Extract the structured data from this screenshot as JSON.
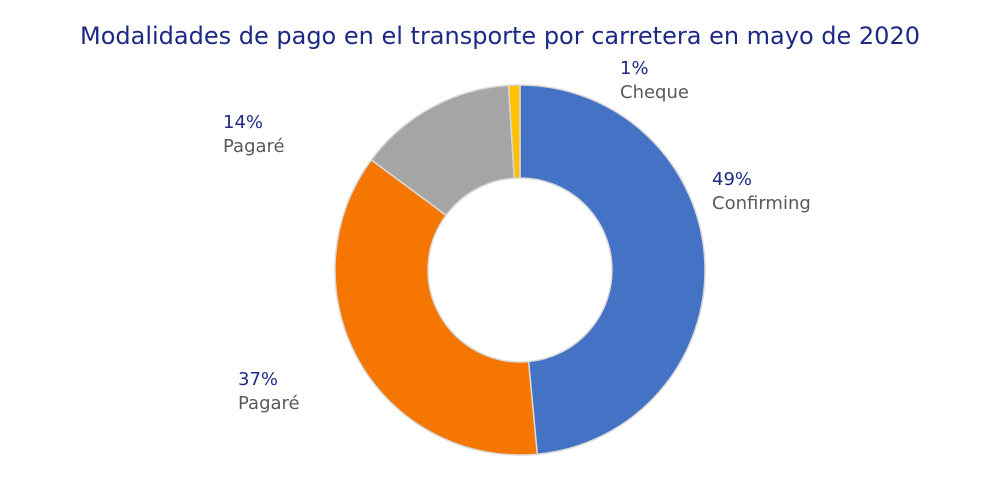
{
  "chart_data": {
    "type": "pie",
    "title": "Modalidades de pago en el transporte por carretera en mayo de 2020",
    "donut": true,
    "legend": "none",
    "slices": [
      {
        "label": "Confirming",
        "value": 49,
        "value_label": "49%",
        "color": "#4472c4"
      },
      {
        "label": "Pagaré",
        "value": 37,
        "value_label": "37%",
        "color": "#f57600"
      },
      {
        "label": "Pagaré",
        "value": 14,
        "value_label": "14%",
        "color": "#a5a5a5"
      },
      {
        "label": "Cheque",
        "value": 1,
        "value_label": "1%",
        "color": "#ffc000"
      }
    ]
  }
}
